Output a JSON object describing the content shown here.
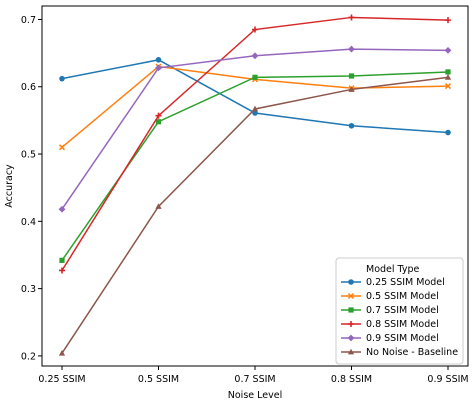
{
  "chart_data": {
    "type": "line",
    "categories": [
      "0.25 SSIM",
      "0.5 SSIM",
      "0.7 SSIM",
      "0.8 SSIM",
      "0.9 SSIM"
    ],
    "xlabel": "Noise Level",
    "ylabel": "Accuracy",
    "ylim": [
      0.185,
      0.72
    ],
    "yticks": [
      0.2,
      0.3,
      0.4,
      0.5,
      0.6,
      0.7
    ],
    "grid": false,
    "legend": {
      "title": "Model Type",
      "placement": "lower-right"
    },
    "series": [
      {
        "name": "0.25 SSIM Model",
        "color": "#1f77b4",
        "marker": "circle",
        "values": [
          0.612,
          0.64,
          0.561,
          0.542,
          0.532
        ]
      },
      {
        "name": "0.5 SSIM Model",
        "color": "#ff7f0e",
        "marker": "x",
        "values": [
          0.51,
          0.63,
          0.611,
          0.598,
          0.601
        ]
      },
      {
        "name": "0.7 SSIM Model",
        "color": "#2ca02c",
        "marker": "square",
        "values": [
          0.342,
          0.548,
          0.614,
          0.616,
          0.622
        ]
      },
      {
        "name": "0.8 SSIM Model",
        "color": "#d62728",
        "marker": "plus",
        "values": [
          0.327,
          0.557,
          0.685,
          0.703,
          0.699
        ]
      },
      {
        "name": "0.9 SSIM Model",
        "color": "#9467bd",
        "marker": "diamond",
        "values": [
          0.418,
          0.628,
          0.646,
          0.656,
          0.654
        ]
      },
      {
        "name": "No Noise - Baseline",
        "color": "#8c564b",
        "marker": "triangle",
        "values": [
          0.204,
          0.422,
          0.567,
          0.596,
          0.614
        ]
      }
    ]
  }
}
